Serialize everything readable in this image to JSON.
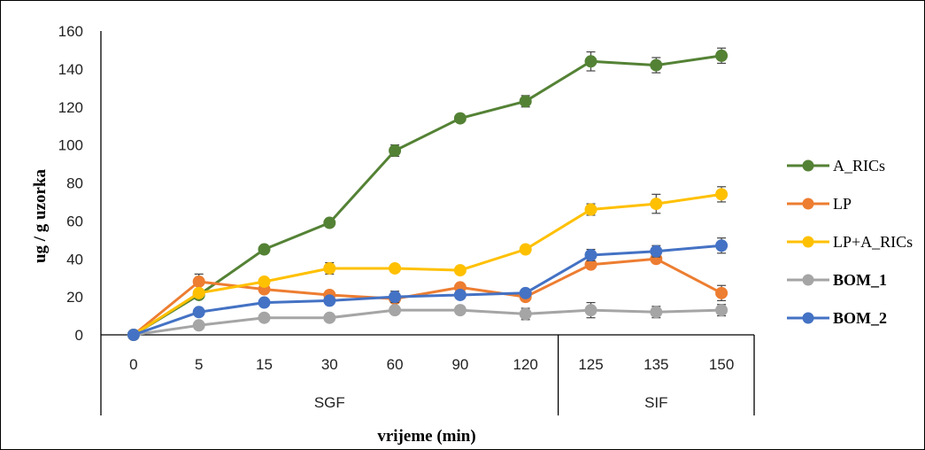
{
  "chart_data": {
    "type": "line",
    "categories": [
      "0",
      "5",
      "15",
      "30",
      "60",
      "90",
      "120",
      "125",
      "135",
      "150"
    ],
    "groups": [
      {
        "label": "SGF",
        "from": 0,
        "to": 6
      },
      {
        "label": "SIF",
        "from": 7,
        "to": 9
      }
    ],
    "xlabel": "vrijeme (min)",
    "ylabel": "ug / g uzorka",
    "ylim": [
      0,
      160
    ],
    "yticks": [
      0,
      20,
      40,
      60,
      80,
      100,
      120,
      140,
      160
    ],
    "grid": false,
    "legend_position": "right",
    "series": [
      {
        "name": "A_RICs",
        "color": "#548235",
        "bold": false,
        "values": [
          0,
          21,
          45,
          59,
          97,
          114,
          123,
          144,
          142,
          147
        ],
        "errors": [
          0,
          0,
          0,
          2,
          3,
          0,
          3,
          5,
          4,
          4
        ]
      },
      {
        "name": "LP",
        "color": "#ED7D31",
        "bold": false,
        "values": [
          0,
          28,
          24,
          21,
          19,
          25,
          20,
          37,
          40,
          22
        ],
        "errors": [
          0,
          4,
          0,
          2,
          0,
          0,
          2,
          0,
          0,
          4
        ]
      },
      {
        "name": "LP+A_RICs",
        "color": "#FFC000",
        "bold": false,
        "values": [
          0,
          22,
          28,
          35,
          35,
          34,
          45,
          66,
          69,
          74
        ],
        "errors": [
          0,
          0,
          0,
          3,
          0,
          0,
          2,
          3,
          5,
          4
        ]
      },
      {
        "name": "BOM_1",
        "color": "#A5A5A5",
        "bold": true,
        "values": [
          0,
          5,
          9,
          9,
          13,
          13,
          11,
          13,
          12,
          13
        ],
        "errors": [
          0,
          0,
          0,
          0,
          2,
          2,
          3,
          4,
          3,
          3
        ]
      },
      {
        "name": "BOM_2",
        "color": "#4472C4",
        "bold": true,
        "values": [
          0,
          12,
          17,
          18,
          20,
          21,
          22,
          42,
          44,
          47
        ],
        "errors": [
          0,
          0,
          2,
          0,
          3,
          0,
          0,
          3,
          3,
          4
        ]
      }
    ]
  }
}
